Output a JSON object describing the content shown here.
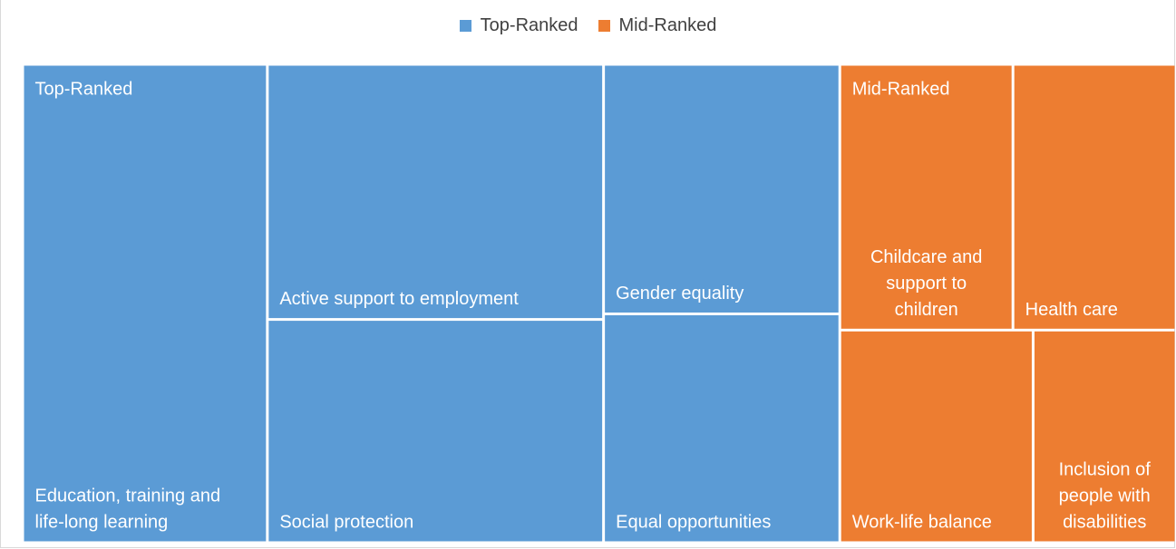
{
  "colors": {
    "top": "#5b9bd5",
    "mid": "#ed7d31",
    "border": "#ffffff"
  },
  "legend": [
    {
      "label": "Top-Ranked",
      "color": "#5b9bd5"
    },
    {
      "label": "Mid-Ranked",
      "color": "#ed7d31"
    }
  ],
  "chart_data": {
    "type": "treemap",
    "legend_position": "top-center",
    "groups": [
      {
        "name": "Top-Ranked",
        "color": "#5b9bd5",
        "items": [
          {
            "label": "Education, training and life-long learning",
            "lines": [
              "Education, training and",
              "life-long learning"
            ],
            "value": 26.2
          },
          {
            "label": "Active support to employment",
            "lines": [
              "Active support to employment"
            ],
            "value": 19.2
          },
          {
            "label": "Social protection",
            "lines": [
              "Social protection"
            ],
            "value": 16.8
          },
          {
            "label": "Gender equality",
            "lines": [
              "Gender equality"
            ],
            "value": 13.2
          },
          {
            "label": "Equal opportunities",
            "lines": [
              "Equal opportunities"
            ],
            "value": 12.1
          }
        ]
      },
      {
        "name": "Mid-Ranked",
        "color": "#ed7d31",
        "items": [
          {
            "label": "Childcare and support to children",
            "lines": [
              "Childcare and",
              "support to",
              "children"
            ],
            "value": 10.3
          },
          {
            "label": "Health care",
            "lines": [
              "Health care"
            ],
            "value": 9.7
          },
          {
            "label": "Work-life balance",
            "lines": [
              "Work-life balance"
            ],
            "value": 9.2
          },
          {
            "label": "Inclusion of people with disabilities",
            "lines": [
              "Inclusion of",
              "people with",
              "disabilities"
            ],
            "value": 6.8
          }
        ]
      }
    ]
  }
}
